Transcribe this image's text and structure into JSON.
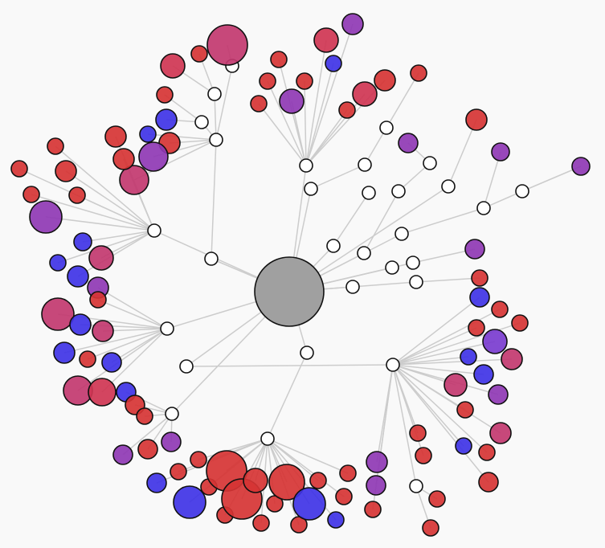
{
  "diagram": {
    "type": "radial-tree-graph",
    "background": "#f9f9f9",
    "link_color": "#cccccc",
    "root_color": "#a0a0a0",
    "hub_color": "#ffffff",
    "colors": {
      "red": "#d63434",
      "crimson": "#cf3553",
      "magenta": "#c2386f",
      "purple": "#8f38b4",
      "violet": "#7a3ccf",
      "blue": "#3f33e6"
    }
  }
}
